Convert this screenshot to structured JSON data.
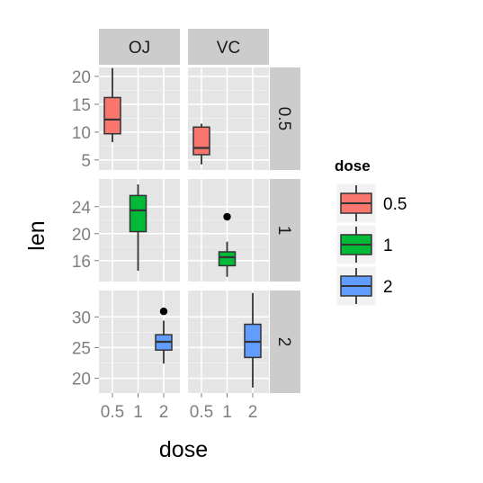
{
  "chart_data": {
    "type": "box",
    "xlabel": "dose",
    "ylabel": "len",
    "facet_cols": [
      "OJ",
      "VC"
    ],
    "facet_rows": [
      "0.5",
      "1",
      "2"
    ],
    "x_categories": [
      "0.5",
      "1",
      "2"
    ],
    "legend": {
      "title": "dose",
      "position": "right",
      "items": [
        {
          "label": "0.5",
          "color": "#F8766D"
        },
        {
          "label": "1",
          "color": "#00BA38"
        },
        {
          "label": "2",
          "color": "#619CFF"
        }
      ]
    },
    "rows": [
      {
        "label": "0.5",
        "ylim": [
          3.2,
          21.6
        ],
        "yticks": [
          5,
          10,
          15,
          20
        ],
        "boxes": [
          {
            "panel": "OJ",
            "x": "0.5",
            "min": 8.2,
            "q1": 9.7,
            "median": 12.25,
            "q3": 16.2,
            "max": 21.5,
            "outliers": [],
            "color": "#F8766D"
          },
          {
            "panel": "VC",
            "x": "0.5",
            "min": 4.2,
            "q1": 5.95,
            "median": 7.15,
            "q3": 10.9,
            "max": 11.5,
            "outliers": [],
            "color": "#F8766D"
          }
        ]
      },
      {
        "label": "1",
        "ylim": [
          12.9,
          28.1
        ],
        "yticks": [
          16,
          20,
          24
        ],
        "boxes": [
          {
            "panel": "OJ",
            "x": "1",
            "min": 14.5,
            "q1": 20.3,
            "median": 23.45,
            "q3": 25.65,
            "max": 27.3,
            "outliers": [],
            "color": "#00BA38"
          },
          {
            "panel": "VC",
            "x": "1",
            "min": 13.6,
            "q1": 15.25,
            "median": 16.5,
            "q3": 17.3,
            "max": 18.8,
            "outliers": [
              22.5
            ],
            "color": "#00BA38"
          }
        ]
      },
      {
        "label": "2",
        "ylim": [
          17.6,
          34.3
        ],
        "yticks": [
          20,
          25,
          30
        ],
        "boxes": [
          {
            "panel": "OJ",
            "x": "2",
            "min": 22.4,
            "q1": 24.6,
            "median": 25.95,
            "q3": 27.1,
            "max": 29.4,
            "outliers": [
              30.9
            ],
            "color": "#619CFF"
          },
          {
            "panel": "VC",
            "x": "2",
            "min": 18.5,
            "q1": 23.4,
            "median": 25.95,
            "q3": 28.8,
            "max": 33.9,
            "outliers": [],
            "color": "#619CFF"
          }
        ]
      }
    ]
  }
}
